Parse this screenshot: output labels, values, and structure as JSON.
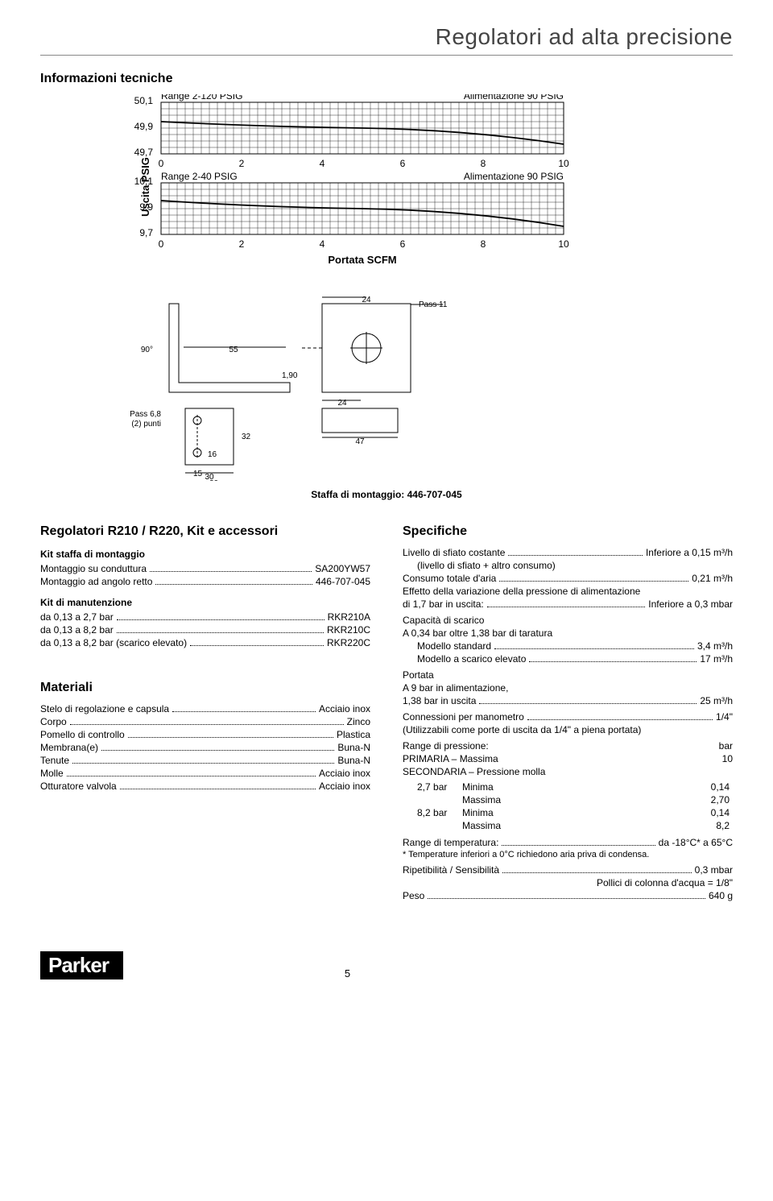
{
  "page_title": "Regolatori ad alta precisione",
  "info_header": "Informazioni tecniche",
  "chart": {
    "ylabel": "Uscita PSIG",
    "top": {
      "y_top": "50,1",
      "y_mid": "49,9",
      "y_bot": "49,7",
      "line_left": "Range 2-120 PSIG",
      "line_right": "Alimentazione 90 PSIG"
    },
    "bot": {
      "y_top": "10,1",
      "y_mid": "9,9",
      "y_bot": "9,7",
      "line_left": "Range 2-40 PSIG",
      "line_right": "Alimentazione 90 PSIG",
      "xlabel": "Portata SCFM",
      "xticks": [
        "0",
        "2",
        "4",
        "6",
        "8",
        "10"
      ]
    },
    "grid_color": "#000000",
    "line_color": "#000000",
    "bg": "#ffffff"
  },
  "bracket": {
    "caption": "Staffa di montaggio: 446-707-045",
    "labels": {
      "pass11": "Pass 11",
      "d24a": "24",
      "d55": "55",
      "d90": "90°",
      "d190": "1,90",
      "pass68": "Pass 6,8",
      "punti": "(2) punti",
      "d24b": "24",
      "d47": "47",
      "d32": "32",
      "d16": "16",
      "d15": "15",
      "d30": "30"
    }
  },
  "left": {
    "heading1": "Regolatori R210 / R220, Kit e accessori",
    "kit_staffa_h": "Kit staffa di montaggio",
    "kit_staffa_rows": [
      {
        "label": "Montaggio su conduttura",
        "value": "SA200YW57"
      },
      {
        "label": "Montaggio ad angolo retto",
        "value": "446-707-045"
      }
    ],
    "kit_manu_h": "Kit di manutenzione",
    "kit_manu_rows": [
      {
        "label": "da 0,13 a 2,7 bar",
        "value": "RKR210A"
      },
      {
        "label": "da 0,13 a 8,2 bar",
        "value": "RKR210C"
      },
      {
        "label": "da 0,13 a 8,2 bar (scarico elevato)",
        "value": "RKR220C"
      }
    ],
    "materiali_h": "Materiali",
    "materiali_rows": [
      {
        "label": "Stelo di regolazione e capsula",
        "value": "Acciaio inox"
      },
      {
        "label": "Corpo",
        "value": "Zinco"
      },
      {
        "label": "Pomello di controllo",
        "value": "Plastica"
      },
      {
        "label": "Membrana(e)",
        "value": "Buna-N"
      },
      {
        "label": "Tenute",
        "value": "Buna-N"
      },
      {
        "label": "Molle",
        "value": "Acciaio inox"
      },
      {
        "label": "Otturatore valvola",
        "value": "Acciaio inox"
      }
    ]
  },
  "right": {
    "heading": "Specifiche",
    "sfiato": {
      "label": "Livello di sfiato costante",
      "value": "Inferiore a 0,15 m³/h",
      "note": "(livello di sfiato + altro consumo)"
    },
    "consumo": {
      "label": "Consumo totale d'aria",
      "value": "0,21 m³/h"
    },
    "effetto_lines": [
      "Effetto della variazione della pressione di alimentazione",
      "di 1,7 bar in uscita:"
    ],
    "effetto_value": "Inferiore a 0,3 mbar",
    "capacita_h": "Capacità di scarico",
    "capacita_desc": "A 0,34 bar oltre 1,38 bar di taratura",
    "capacita_rows": [
      {
        "label": "Modello standard",
        "value": "3,4 m³/h"
      },
      {
        "label": "Modello a scarico elevato",
        "value": "17 m³/h"
      }
    ],
    "portata_h": "Portata",
    "portata_desc": "A 9 bar in alimentazione,",
    "portata_row": {
      "label": "1,38 bar in uscita",
      "value": "25 m³/h"
    },
    "conn": {
      "label": "Connessioni per manometro",
      "value": "1/4\"",
      "note": "(Utilizzabili come porte di uscita da 1/4\" a piena portata)"
    },
    "range_press_h": {
      "label": "Range di pressione:",
      "value": "bar"
    },
    "primaria": {
      "label": "PRIMARIA – Massima",
      "value": "10"
    },
    "secondaria_h": "SECONDARIA – Pressione molla",
    "sec_rows": [
      {
        "c1": "2,7 bar",
        "c2": "Minima",
        "c3": "0,14"
      },
      {
        "c1": "",
        "c2": "Massima",
        "c3": "2,70"
      },
      {
        "c1": "8,2 bar",
        "c2": "Minima",
        "c3": "0,14"
      },
      {
        "c1": "",
        "c2": "Massima",
        "c3": "8,2"
      }
    ],
    "range_temp": {
      "label": "Range di temperatura:",
      "value": "da -18°C* a 65°C"
    },
    "temp_note": "* Temperature inferiori a 0°C richiedono aria priva di condensa.",
    "ripet": {
      "label": "Ripetibilità / Sensibilità",
      "value": "0,3 mbar"
    },
    "ripet_note": "Pollici di colonna d'acqua = 1/8\"",
    "peso": {
      "label": "Peso",
      "value": "640 g"
    }
  },
  "footer": {
    "logo": "Parker",
    "page": "5"
  }
}
